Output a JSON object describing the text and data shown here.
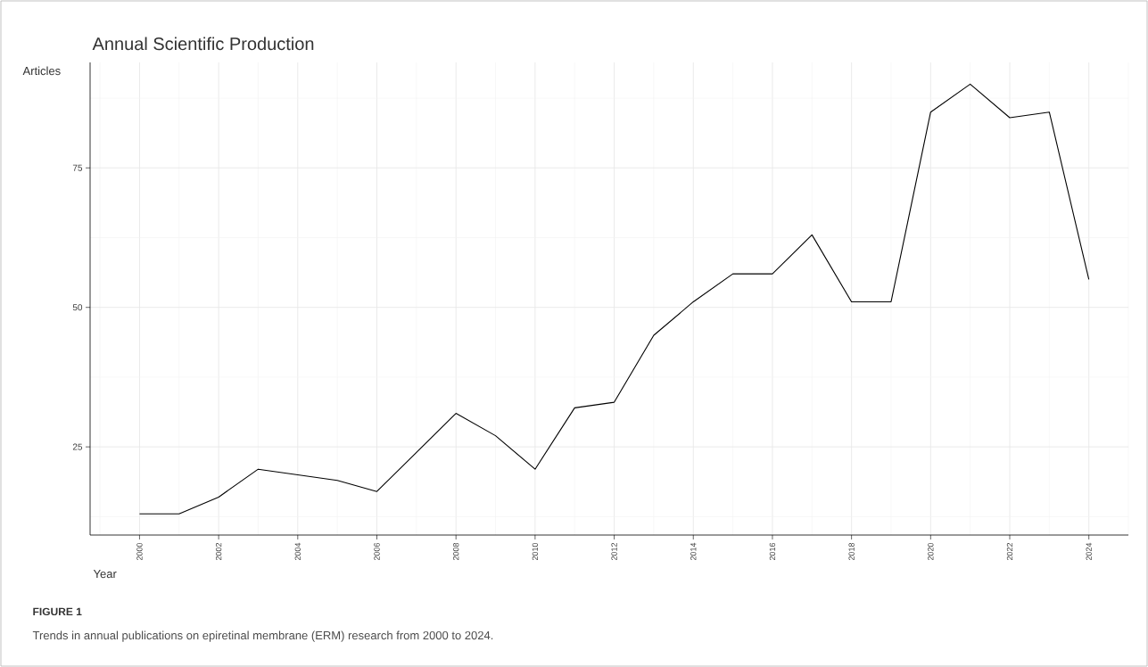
{
  "chart_data": {
    "type": "line",
    "title": "Annual Scientific Production",
    "xlabel": "Year",
    "ylabel": "Articles",
    "x": [
      2000,
      2001,
      2002,
      2003,
      2004,
      2005,
      2006,
      2007,
      2008,
      2009,
      2010,
      2011,
      2012,
      2013,
      2014,
      2015,
      2016,
      2017,
      2018,
      2019,
      2020,
      2021,
      2022,
      2023,
      2024
    ],
    "series": [
      {
        "color": "#000000",
        "values": [
          13,
          13,
          16,
          21,
          20,
          19,
          17,
          24,
          31,
          27,
          21,
          32,
          33,
          45,
          51,
          56,
          56,
          63,
          51,
          51,
          85,
          90,
          84,
          85,
          55
        ]
      }
    ],
    "xlim": [
      1998.75,
      2025
    ],
    "ylim": [
      9.2,
      93.9
    ],
    "xticks": [
      2000,
      2002,
      2004,
      2006,
      2008,
      2010,
      2012,
      2014,
      2016,
      2018,
      2020,
      2022,
      2024
    ],
    "yticks": [
      25,
      50,
      75
    ],
    "grid": true,
    "marker": "none",
    "line_style": "solid",
    "annotations": [
      "**FIGURE 1**",
      "Trends in annual publications on epiretinal membrane (ERM) research from 2000 to 2024."
    ]
  }
}
